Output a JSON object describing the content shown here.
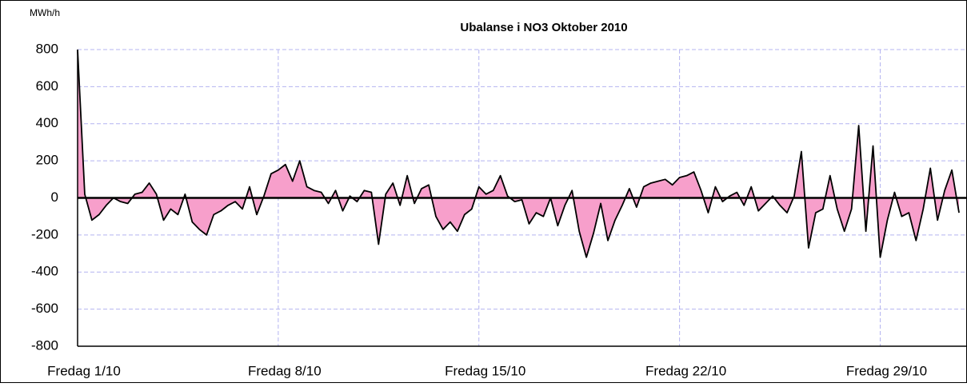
{
  "chart_data": {
    "type": "area",
    "title": "Ubalanse i NO3  Oktober 2010",
    "y_label": "MWh/h",
    "color": "#000000",
    "fill_color": "#f79fcb",
    "grid": true,
    "xlim": [
      0,
      31
    ],
    "xticks": [
      {
        "value": 0,
        "label": "Fredag  1/10"
      },
      {
        "value": 7,
        "label": "Fredag  8/10"
      },
      {
        "value": 14,
        "label": "Fredag  15/10"
      },
      {
        "value": 21,
        "label": "Fredag  22/10"
      },
      {
        "value": 28,
        "label": "Fredag 29/10"
      }
    ],
    "ylim": [
      -800,
      800
    ],
    "yticks": [
      -800,
      -600,
      -400,
      -200,
      0,
      200,
      400,
      600,
      800
    ],
    "x": [
      0,
      0.25,
      0.5,
      0.75,
      1,
      1.25,
      1.5,
      1.75,
      2,
      2.25,
      2.5,
      2.75,
      3,
      3.25,
      3.5,
      3.75,
      4,
      4.25,
      4.5,
      4.75,
      5,
      5.25,
      5.5,
      5.75,
      6,
      6.25,
      6.5,
      6.75,
      7,
      7.25,
      7.5,
      7.75,
      8,
      8.25,
      8.5,
      8.75,
      9,
      9.25,
      9.5,
      9.75,
      10,
      10.25,
      10.5,
      10.75,
      11,
      11.25,
      11.5,
      11.75,
      12,
      12.25,
      12.5,
      12.75,
      13,
      13.25,
      13.5,
      13.75,
      14,
      14.25,
      14.5,
      14.75,
      15,
      15.25,
      15.5,
      15.75,
      16,
      16.25,
      16.5,
      16.75,
      17,
      17.25,
      17.5,
      17.75,
      18,
      18.25,
      18.5,
      18.75,
      19,
      19.25,
      19.5,
      19.75,
      20,
      20.25,
      20.5,
      20.75,
      21,
      21.25,
      21.5,
      21.75,
      22,
      22.25,
      22.5,
      22.75,
      23,
      23.25,
      23.5,
      23.75,
      24,
      24.25,
      24.5,
      24.75,
      25,
      25.25,
      25.5,
      25.75,
      26,
      26.25,
      26.5,
      26.75,
      27,
      27.25,
      27.5,
      27.75,
      28,
      28.25,
      28.5,
      28.75,
      29,
      29.25,
      29.5,
      29.75,
      30,
      30.25,
      30.5,
      30.75
    ],
    "values": [
      800,
      20,
      -120,
      -90,
      -40,
      0,
      -20,
      -30,
      20,
      30,
      80,
      20,
      -120,
      -60,
      -90,
      20,
      -130,
      -170,
      -200,
      -90,
      -70,
      -40,
      -20,
      -60,
      60,
      -90,
      10,
      130,
      150,
      180,
      90,
      200,
      60,
      40,
      30,
      -30,
      40,
      -70,
      10,
      -20,
      40,
      30,
      -250,
      20,
      80,
      -40,
      120,
      -30,
      50,
      70,
      -100,
      -170,
      -130,
      -180,
      -90,
      -60,
      60,
      20,
      40,
      120,
      10,
      -20,
      -10,
      -140,
      -80,
      -100,
      0,
      -150,
      -40,
      40,
      -180,
      -320,
      -190,
      -30,
      -230,
      -120,
      -40,
      50,
      -50,
      60,
      80,
      90,
      100,
      70,
      110,
      120,
      140,
      40,
      -80,
      60,
      -20,
      10,
      30,
      -40,
      60,
      -70,
      -30,
      10,
      -40,
      -80,
      10,
      250,
      -270,
      -80,
      -60,
      120,
      -60,
      -180,
      -60,
      390,
      -180,
      280,
      -320,
      -120,
      30,
      -100,
      -80,
      -230,
      -60,
      160,
      -120,
      40,
      150,
      -80
    ]
  }
}
